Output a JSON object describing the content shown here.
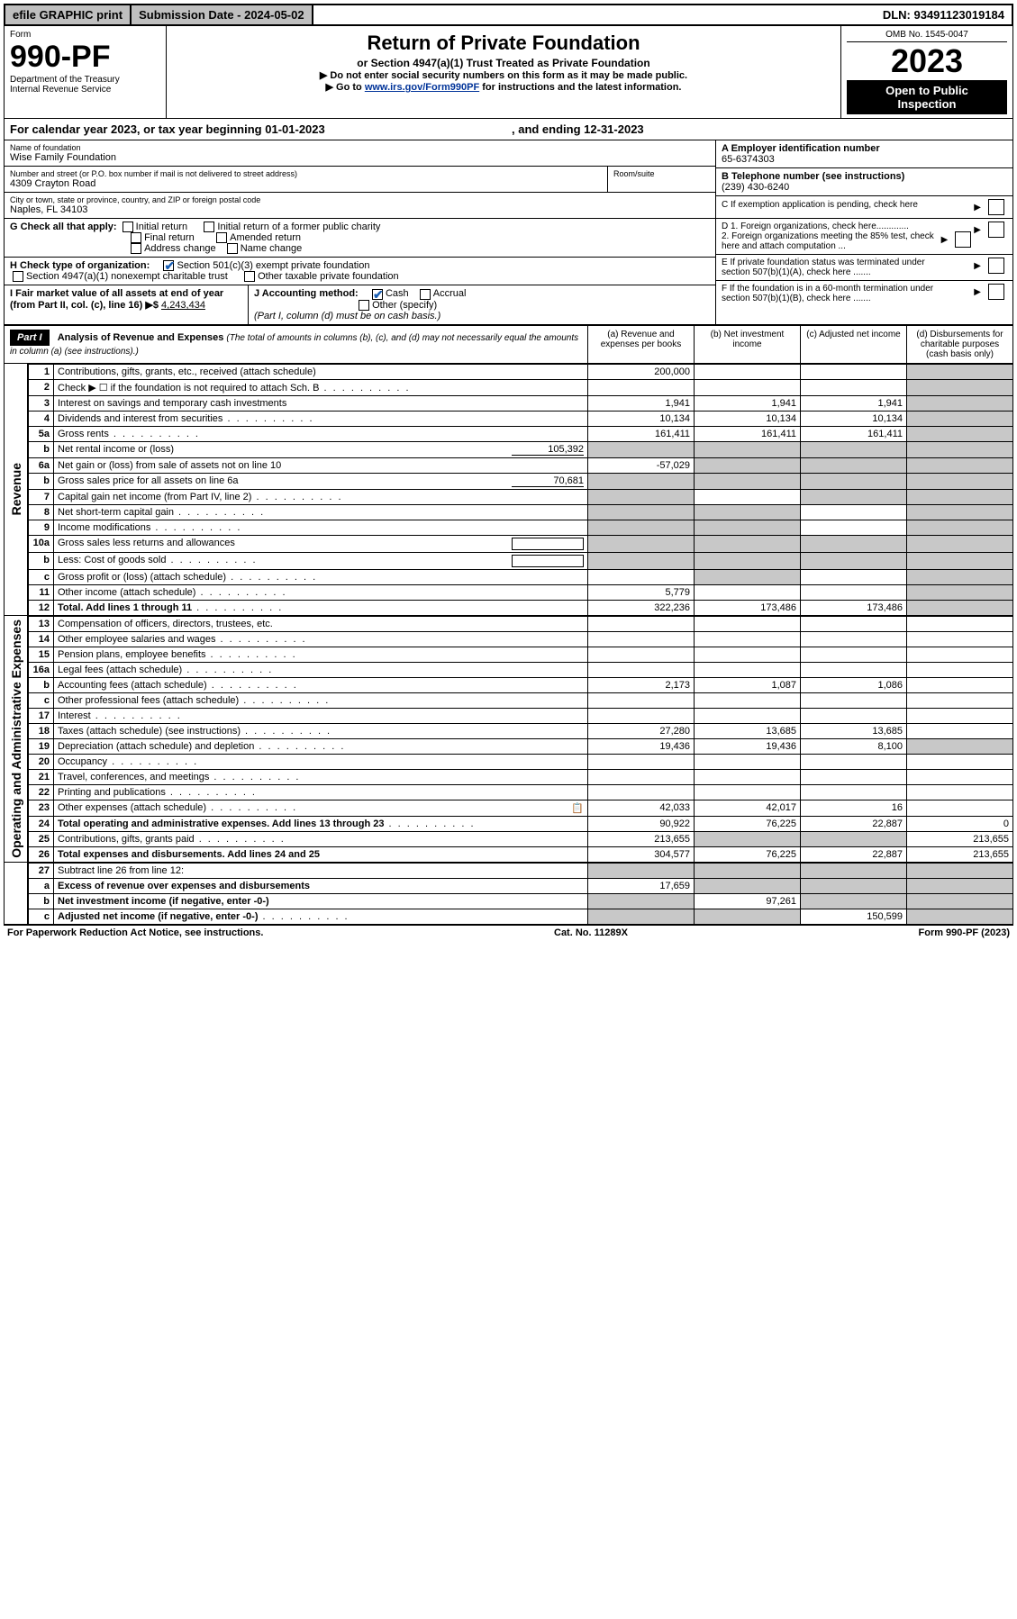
{
  "topbar": {
    "efile": "efile GRAPHIC print",
    "subdate_label": "Submission Date - 2024-05-02",
    "dln": "DLN: 93491123019184"
  },
  "header": {
    "form_label": "Form",
    "form_no": "990-PF",
    "dept": "Department of the Treasury\nInternal Revenue Service",
    "title": "Return of Private Foundation",
    "subtitle": "or Section 4947(a)(1) Trust Treated as Private Foundation",
    "instr1": "▶ Do not enter social security numbers on this form as it may be made public.",
    "instr2_pre": "▶ Go to ",
    "instr2_link": "www.irs.gov/Form990PF",
    "instr2_post": " for instructions and the latest information.",
    "omb": "OMB No. 1545-0047",
    "year": "2023",
    "openpub": "Open to Public\nInspection"
  },
  "cal": {
    "text_pre": "For calendar year 2023, or tax year beginning ",
    "begin": "01-01-2023",
    "text_mid": " , and ending ",
    "end": "12-31-2023"
  },
  "info": {
    "name_lbl": "Name of foundation",
    "name": "Wise Family Foundation",
    "addr_lbl": "Number and street (or P.O. box number if mail is not delivered to street address)",
    "addr": "4309 Crayton Road",
    "room_lbl": "Room/suite",
    "city_lbl": "City or town, state or province, country, and ZIP or foreign postal code",
    "city": "Naples, FL  34103",
    "A_lbl": "A Employer identification number",
    "A_val": "65-6374303",
    "B_lbl": "B Telephone number (see instructions)",
    "B_val": "(239) 430-6240",
    "C_lbl": "C If exemption application is pending, check here",
    "D1_lbl": "D 1. Foreign organizations, check here.............",
    "D2_lbl": "2. Foreign organizations meeting the 85% test, check here and attach computation ...",
    "E_lbl": "E  If private foundation status was terminated under section 507(b)(1)(A), check here .......",
    "F_lbl": "F  If the foundation is in a 60-month termination under section 507(b)(1)(B), check here .......",
    "G_lbl": "G Check all that apply:",
    "G_opts": [
      "Initial return",
      "Initial return of a former public charity",
      "Final return",
      "Amended return",
      "Address change",
      "Name change"
    ],
    "H_lbl": "H Check type of organization:",
    "H_opt1": "Section 501(c)(3) exempt private foundation",
    "H_opt2": "Section 4947(a)(1) nonexempt charitable trust",
    "H_opt3": "Other taxable private foundation",
    "I_lbl": "I Fair market value of all assets at end of year (from Part II, col. (c), line 16) ▶$",
    "I_val": "4,243,434",
    "J_lbl": "J Accounting method:",
    "J_cash": "Cash",
    "J_accrual": "Accrual",
    "J_other": "Other (specify)",
    "J_note": "(Part I, column (d) must be on cash basis.)"
  },
  "part1": {
    "label": "Part I",
    "title": "Analysis of Revenue and Expenses",
    "title_note": "(The total of amounts in columns (b), (c), and (d) may not necessarily equal the amounts in column (a) (see instructions).)",
    "cols": {
      "a": "(a)   Revenue and expenses per books",
      "b": "(b)   Net investment income",
      "c": "(c)   Adjusted net income",
      "d": "(d)   Disbursements for charitable purposes (cash basis only)"
    }
  },
  "sections": {
    "rev": "Revenue",
    "exp": "Operating and Administrative Expenses"
  },
  "rows": [
    {
      "n": "1",
      "t": "Contributions, gifts, grants, etc., received (attach schedule)",
      "a": "200,000",
      "d_shade": true
    },
    {
      "n": "2",
      "t": "Check ▶ ☐ if the foundation is not required to attach Sch. B",
      "dots": true,
      "d_shade": true
    },
    {
      "n": "3",
      "t": "Interest on savings and temporary cash investments",
      "a": "1,941",
      "b": "1,941",
      "c": "1,941",
      "d_shade": true
    },
    {
      "n": "4",
      "t": "Dividends and interest from securities",
      "dots": true,
      "a": "10,134",
      "b": "10,134",
      "c": "10,134",
      "d_shade": true
    },
    {
      "n": "5a",
      "t": "Gross rents",
      "dots": true,
      "a": "161,411",
      "b": "161,411",
      "c": "161,411",
      "d_shade": true
    },
    {
      "n": "b",
      "t": "Net rental income or (loss)",
      "inline_val": "105,392",
      "all_shade": true
    },
    {
      "n": "6a",
      "t": "Net gain or (loss) from sale of assets not on line 10",
      "a": "-57,029",
      "bc_shade": true,
      "d_shade": true
    },
    {
      "n": "b",
      "t": "Gross sales price for all assets on line 6a",
      "inline_val": "70,681",
      "all_shade": true
    },
    {
      "n": "7",
      "t": "Capital gain net income (from Part IV, line 2)",
      "dots": true,
      "a_shade": true,
      "c_shade": true,
      "d_shade": true
    },
    {
      "n": "8",
      "t": "Net short-term capital gain",
      "dots": true,
      "a_shade": true,
      "b_shade": true,
      "d_shade": true
    },
    {
      "n": "9",
      "t": "Income modifications",
      "dots": true,
      "a_shade": true,
      "b_shade": true,
      "d_shade": true
    },
    {
      "n": "10a",
      "t": "Gross sales less returns and allowances",
      "inline_box": true,
      "all_shade": true
    },
    {
      "n": "b",
      "t": "Less: Cost of goods sold",
      "dots": true,
      "inline_box": true,
      "all_shade": true
    },
    {
      "n": "c",
      "t": "Gross profit or (loss) (attach schedule)",
      "dots": true,
      "b_shade": true,
      "d_shade": true
    },
    {
      "n": "11",
      "t": "Other income (attach schedule)",
      "dots": true,
      "a": "5,779",
      "d_shade": true
    },
    {
      "n": "12",
      "t": "Total. Add lines 1 through 11",
      "dots": true,
      "bold": true,
      "a": "322,236",
      "b": "173,486",
      "c": "173,486",
      "d_shade": true
    }
  ],
  "exp_rows": [
    {
      "n": "13",
      "t": "Compensation of officers, directors, trustees, etc."
    },
    {
      "n": "14",
      "t": "Other employee salaries and wages",
      "dots": true
    },
    {
      "n": "15",
      "t": "Pension plans, employee benefits",
      "dots": true
    },
    {
      "n": "16a",
      "t": "Legal fees (attach schedule)",
      "dots": true
    },
    {
      "n": "b",
      "t": "Accounting fees (attach schedule)",
      "dots": true,
      "a": "2,173",
      "b": "1,087",
      "c": "1,086"
    },
    {
      "n": "c",
      "t": "Other professional fees (attach schedule)",
      "dots": true
    },
    {
      "n": "17",
      "t": "Interest",
      "dots": true
    },
    {
      "n": "18",
      "t": "Taxes (attach schedule) (see instructions)",
      "dots": true,
      "a": "27,280",
      "b": "13,685",
      "c": "13,685"
    },
    {
      "n": "19",
      "t": "Depreciation (attach schedule) and depletion",
      "dots": true,
      "a": "19,436",
      "b": "19,436",
      "c": "8,100",
      "d_shade": true
    },
    {
      "n": "20",
      "t": "Occupancy",
      "dots": true
    },
    {
      "n": "21",
      "t": "Travel, conferences, and meetings",
      "dots": true
    },
    {
      "n": "22",
      "t": "Printing and publications",
      "dots": true
    },
    {
      "n": "23",
      "t": "Other expenses (attach schedule)",
      "dots": true,
      "icon": true,
      "a": "42,033",
      "b": "42,017",
      "c": "16"
    },
    {
      "n": "24",
      "t": "Total operating and administrative expenses. Add lines 13 through 23",
      "dots": true,
      "bold": true,
      "a": "90,922",
      "b": "76,225",
      "c": "22,887",
      "d": "0"
    },
    {
      "n": "25",
      "t": "Contributions, gifts, grants paid",
      "dots": true,
      "a": "213,655",
      "bc_shade": true,
      "d": "213,655"
    },
    {
      "n": "26",
      "t": "Total expenses and disbursements. Add lines 24 and 25",
      "bold": true,
      "a": "304,577",
      "b": "76,225",
      "c": "22,887",
      "d": "213,655"
    }
  ],
  "bottom_rows": [
    {
      "n": "27",
      "t": "Subtract line 26 from line 12:",
      "all_shade": true
    },
    {
      "n": "a",
      "t": "Excess of revenue over expenses and disbursements",
      "bold": true,
      "a": "17,659",
      "bcd_shade": true
    },
    {
      "n": "b",
      "t": "Net investment income (if negative, enter -0-)",
      "bold": true,
      "a_shade": true,
      "b": "97,261",
      "cd_shade": true
    },
    {
      "n": "c",
      "t": "Adjusted net income (if negative, enter -0-)",
      "bold": true,
      "dots": true,
      "ab_shade": true,
      "c": "150,599",
      "d_shade": true
    }
  ],
  "footer": {
    "left": "For Paperwork Reduction Act Notice, see instructions.",
    "mid": "Cat. No. 11289X",
    "right": "Form 990-PF (2023)"
  }
}
